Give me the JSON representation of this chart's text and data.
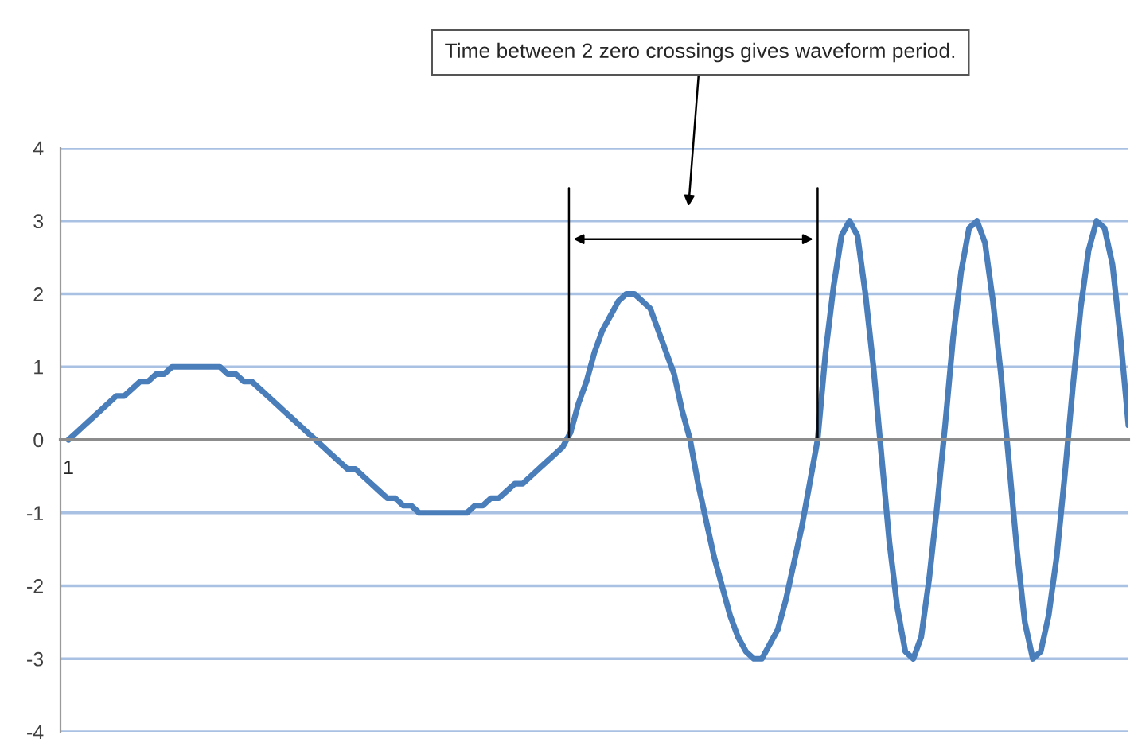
{
  "chart_data": {
    "type": "line",
    "annotations": [
      "Time between 2 zero crossings gives waveform period."
    ],
    "categories": [
      "1",
      null,
      null,
      null,
      null,
      null,
      null,
      null,
      null,
      null,
      null,
      null,
      null,
      null,
      null,
      null,
      null,
      null,
      null,
      null,
      null,
      null,
      null,
      null,
      null,
      null,
      null,
      null,
      null,
      null,
      null,
      null,
      null,
      null,
      null,
      null,
      null,
      null,
      null,
      null,
      null,
      null,
      null,
      null,
      null,
      null,
      null,
      null,
      null,
      null,
      null,
      null,
      null,
      null,
      null,
      null,
      null,
      null,
      null,
      null,
      null,
      null,
      null,
      null,
      null,
      null,
      null,
      null,
      null,
      null,
      null,
      null,
      null,
      null,
      null,
      null,
      null,
      null,
      null,
      null,
      null,
      null,
      null,
      null,
      null,
      null,
      null,
      null,
      null,
      null,
      null,
      null,
      null,
      null,
      null,
      null,
      null,
      null,
      null,
      null,
      null,
      null,
      null,
      null,
      null,
      null,
      null,
      null,
      null,
      null,
      null,
      null,
      null,
      null,
      null,
      null,
      null,
      null,
      null,
      null,
      null,
      null,
      null,
      null,
      null,
      null,
      null,
      null,
      null,
      null,
      null,
      null,
      null,
      null
    ],
    "series": [
      {
        "color": "#4a7ebb",
        "values": [
          0,
          0.1,
          0.2,
          0.3,
          0.4,
          0.5,
          0.6,
          0.6,
          0.7,
          0.8,
          0.8,
          0.9,
          0.9,
          1.0,
          1.0,
          1.0,
          1.0,
          1.0,
          1.0,
          1.0,
          0.9,
          0.9,
          0.8,
          0.8,
          0.7,
          0.6,
          0.5,
          0.4,
          0.3,
          0.2,
          0.1,
          0,
          -0.1,
          -0.2,
          -0.3,
          -0.4,
          -0.4,
          -0.5,
          -0.6,
          -0.7,
          -0.8,
          -0.8,
          -0.9,
          -0.9,
          -1.0,
          -1.0,
          -1.0,
          -1.0,
          -1.0,
          -1.0,
          -1.0,
          -0.9,
          -0.9,
          -0.8,
          -0.8,
          -0.7,
          -0.6,
          -0.6,
          -0.5,
          -0.4,
          -0.3,
          -0.2,
          -0.1,
          0.1,
          0.5,
          0.8,
          1.2,
          1.5,
          1.7,
          1.9,
          2.0,
          2.0,
          1.9,
          1.8,
          1.5,
          1.2,
          0.9,
          0.4,
          0,
          -0.6,
          -1.1,
          -1.6,
          -2.0,
          -2.4,
          -2.7,
          -2.9,
          -3.0,
          -3.0,
          -2.8,
          -2.6,
          -2.2,
          -1.7,
          -1.2,
          -0.6,
          0,
          1.2,
          2.1,
          2.8,
          3.0,
          2.8,
          2.0,
          1.0,
          -0.2,
          -1.4,
          -2.3,
          -2.9,
          -3.0,
          -2.7,
          -1.9,
          -0.9,
          0.2,
          1.4,
          2.3,
          2.9,
          3.0,
          2.7,
          1.9,
          0.9,
          -0.3,
          -1.5,
          -2.5,
          -3.0,
          -2.9,
          -2.4,
          -1.6,
          -0.5,
          0.7,
          1.8,
          2.6,
          3.0,
          2.9,
          2.4,
          1.4,
          0.2
        ]
      }
    ],
    "ylim": [
      -4,
      4
    ],
    "yticks": [
      -4,
      -3,
      -2,
      -1,
      0,
      1,
      2,
      3,
      4
    ],
    "grid": "y",
    "legend": false,
    "marker": "none",
    "line_style": "solid"
  }
}
